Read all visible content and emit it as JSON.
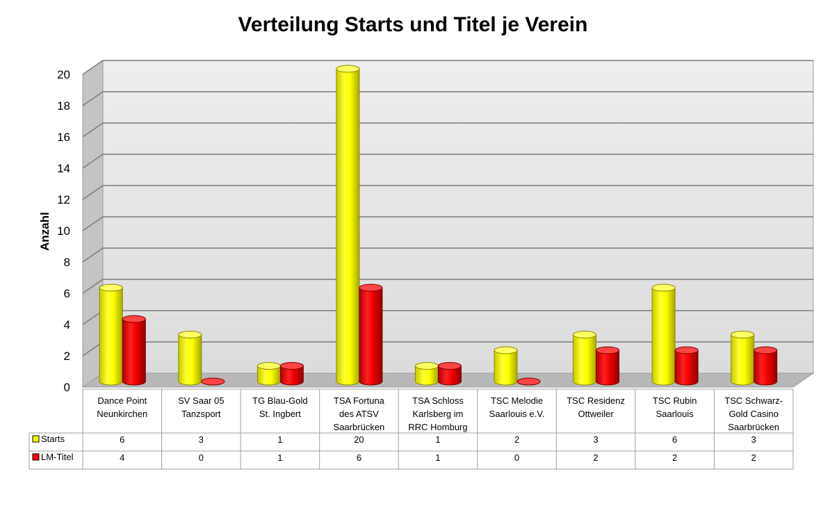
{
  "chart_data": {
    "type": "bar",
    "title": "Verteilung Starts und Titel je Verein",
    "ylabel": "Anzahl",
    "xlabel": "",
    "ylim": [
      0,
      20
    ],
    "yticks": [
      0,
      2,
      4,
      6,
      8,
      10,
      12,
      14,
      16,
      18,
      20
    ],
    "grid": true,
    "style": "3d-cylinder",
    "data_table": true,
    "categories": [
      [
        "Dance Point",
        "Neunkirchen"
      ],
      [
        "SV Saar 05",
        "Tanzsport"
      ],
      [
        "TG Blau-Gold",
        "St. Ingbert"
      ],
      [
        "TSA Fortuna",
        "des ATSV",
        "Saarbrücken"
      ],
      [
        "TSA Schloss",
        "Karlsberg im",
        "RRC Homburg"
      ],
      [
        "TSC Melodie",
        "Saarlouis e.V."
      ],
      [
        "TSC Residenz",
        "Ottweiler"
      ],
      [
        "TSC Rubin",
        "Saarlouis"
      ],
      [
        "TSC Schwarz-",
        "Gold Casino",
        "Saarbrücken"
      ]
    ],
    "series": [
      {
        "name": "Starts",
        "color": "#ffff00",
        "values": [
          6,
          3,
          1,
          20,
          1,
          2,
          3,
          6,
          3
        ]
      },
      {
        "name": "LM-Titel",
        "color": "#ff0000",
        "values": [
          4,
          0,
          1,
          6,
          1,
          0,
          2,
          2,
          2
        ]
      }
    ]
  }
}
